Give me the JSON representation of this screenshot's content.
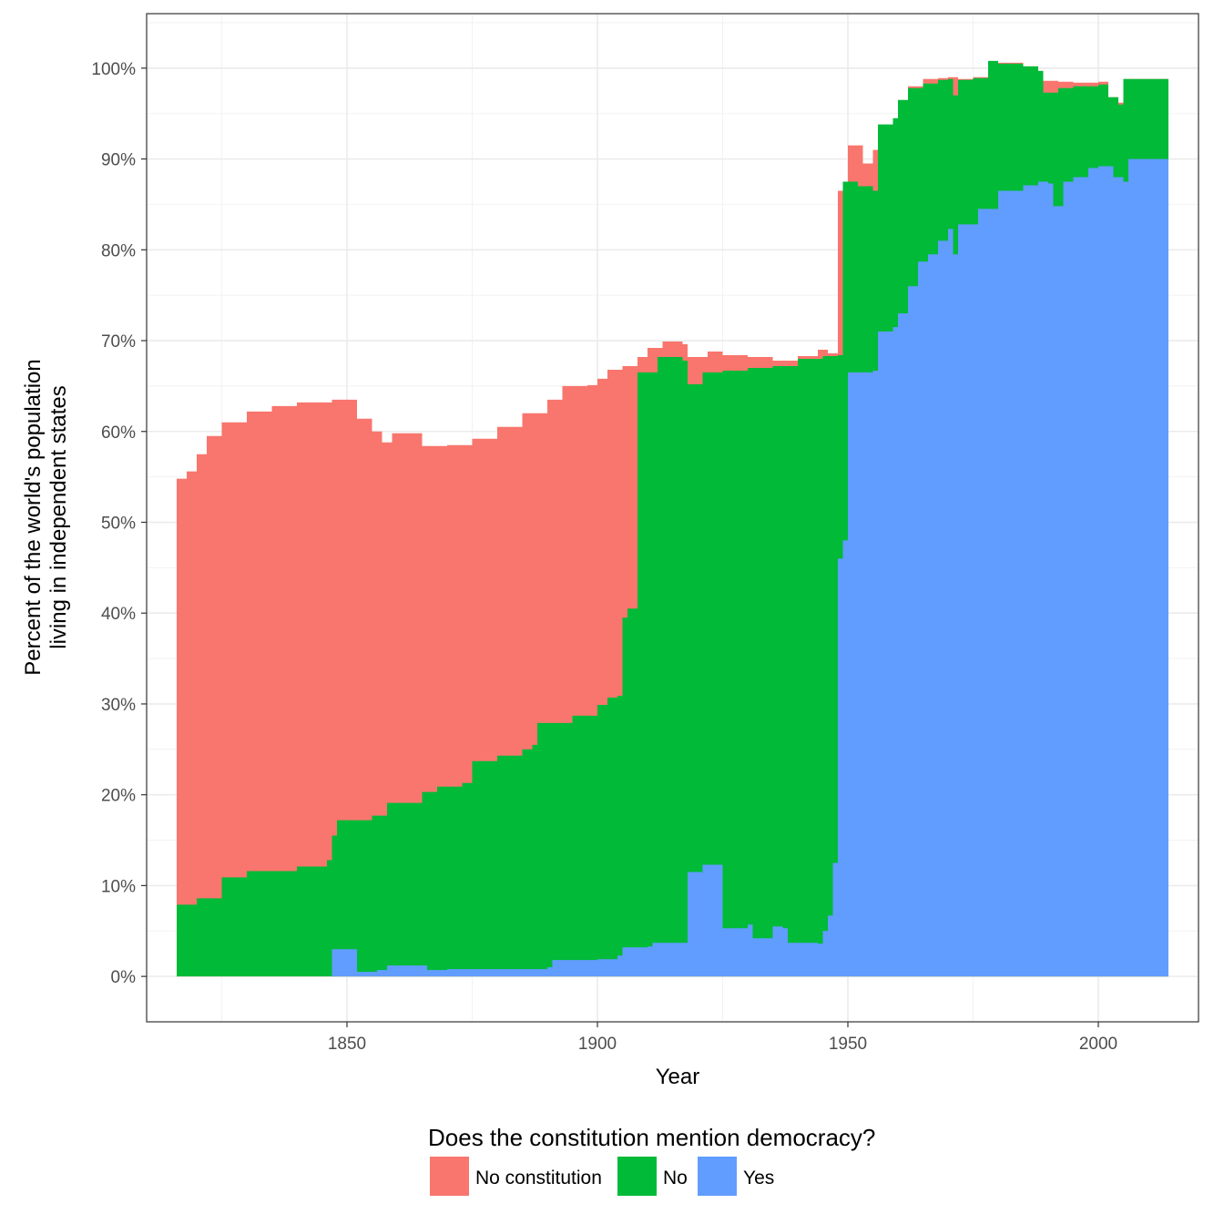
{
  "chart_data": {
    "type": "area",
    "stacked": true,
    "xlabel": "Year",
    "ylabel_lines": [
      "Percent of the world's population",
      "living in independent states"
    ],
    "xlim": [
      1810,
      2020
    ],
    "ylim": [
      -5,
      106
    ],
    "x_ticks": [
      1850,
      1900,
      1950,
      2000
    ],
    "x_tick_labels": [
      "1850",
      "1900",
      "1950",
      "2000"
    ],
    "y_ticks": [
      0,
      10,
      20,
      30,
      40,
      50,
      60,
      70,
      80,
      90,
      100
    ],
    "y_tick_labels": [
      "0%",
      "10%",
      "20%",
      "30%",
      "40%",
      "50%",
      "60%",
      "70%",
      "80%",
      "90%",
      "100%"
    ],
    "grid": true,
    "legend": {
      "position": "bottom",
      "title": "Does the constitution mention democracy?",
      "entries": [
        {
          "label": "No constitution",
          "color": "#F8766D"
        },
        {
          "label": "No",
          "color": "#00BA38"
        },
        {
          "label": "Yes",
          "color": "#619CFF"
        }
      ]
    },
    "series": [
      {
        "name": "Yes",
        "color": "#619CFF",
        "points": [
          [
            1816,
            0
          ],
          [
            1846,
            0
          ],
          [
            1847,
            3
          ],
          [
            1851,
            3
          ],
          [
            1852,
            0.5
          ],
          [
            1856,
            0.7
          ],
          [
            1858,
            1.2
          ],
          [
            1865,
            1.2
          ],
          [
            1866,
            0.7
          ],
          [
            1870,
            0.8
          ],
          [
            1880,
            0.8
          ],
          [
            1890,
            1.0
          ],
          [
            1891,
            1.8
          ],
          [
            1900,
            1.9
          ],
          [
            1904,
            2.3
          ],
          [
            1905,
            3.2
          ],
          [
            1910,
            3.3
          ],
          [
            1911,
            3.7
          ],
          [
            1917,
            3.7
          ],
          [
            1918,
            11.5
          ],
          [
            1921,
            12.3
          ],
          [
            1924,
            12.3
          ],
          [
            1925,
            5.3
          ],
          [
            1930,
            5.7
          ],
          [
            1931,
            4.2
          ],
          [
            1935,
            5.5
          ],
          [
            1937,
            5.3
          ],
          [
            1938,
            3.7
          ],
          [
            1944,
            3.6
          ],
          [
            1945,
            5
          ],
          [
            1946,
            6.7
          ],
          [
            1947,
            12.5
          ],
          [
            1948,
            46
          ],
          [
            1949,
            48
          ],
          [
            1950,
            66.5
          ],
          [
            1955,
            66.7
          ],
          [
            1956,
            71
          ],
          [
            1959,
            71.5
          ],
          [
            1960,
            73
          ],
          [
            1962,
            76
          ],
          [
            1964,
            78.7
          ],
          [
            1966,
            79.5
          ],
          [
            1968,
            81.0
          ],
          [
            1970,
            82.3
          ],
          [
            1971,
            79.5
          ],
          [
            1972,
            82.8
          ],
          [
            1976,
            84.5
          ],
          [
            1980,
            86.5
          ],
          [
            1985,
            87.1
          ],
          [
            1988,
            87.5
          ],
          [
            1990,
            87.3
          ],
          [
            1991,
            84.8
          ],
          [
            1993,
            87.5
          ],
          [
            1995,
            88
          ],
          [
            1998,
            89
          ],
          [
            2000,
            89.2
          ],
          [
            2003,
            88
          ],
          [
            2005,
            87.5
          ],
          [
            2006,
            90
          ],
          [
            2014,
            90.5
          ]
        ]
      },
      {
        "name": "No",
        "color": "#00BA38",
        "points": [
          [
            1816,
            7.9
          ],
          [
            1820,
            8.6
          ],
          [
            1825,
            10.9
          ],
          [
            1830,
            11.6
          ],
          [
            1840,
            12.1
          ],
          [
            1846,
            12.8
          ],
          [
            1847,
            15.5
          ],
          [
            1848,
            17.2
          ],
          [
            1855,
            17.7
          ],
          [
            1858,
            19.1
          ],
          [
            1865,
            20.3
          ],
          [
            1868,
            20.9
          ],
          [
            1873,
            21.3
          ],
          [
            1875,
            23.7
          ],
          [
            1880,
            24.3
          ],
          [
            1885,
            25.0
          ],
          [
            1887,
            25.5
          ],
          [
            1888,
            27.9
          ],
          [
            1895,
            28.7
          ],
          [
            1900,
            29.9
          ],
          [
            1902,
            30.7
          ],
          [
            1904,
            30.9
          ],
          [
            1905,
            39.5
          ],
          [
            1906,
            40.5
          ],
          [
            1908,
            66.5
          ],
          [
            1912,
            68.2
          ],
          [
            1917,
            67.8
          ],
          [
            1918,
            65.2
          ],
          [
            1921,
            66.5
          ],
          [
            1925,
            66.7
          ],
          [
            1930,
            67.0
          ],
          [
            1935,
            67.2
          ],
          [
            1940,
            68.0
          ],
          [
            1945,
            68.3
          ],
          [
            1946,
            68.3
          ],
          [
            1947,
            68.3
          ],
          [
            1948,
            68.4
          ],
          [
            1949,
            87.5
          ],
          [
            1952,
            87.0
          ],
          [
            1955,
            86.5
          ],
          [
            1956,
            93.8
          ],
          [
            1959,
            94.5
          ],
          [
            1960,
            96.5
          ],
          [
            1962,
            97.8
          ],
          [
            1965,
            98.3
          ],
          [
            1968,
            98.7
          ],
          [
            1970,
            98.8
          ],
          [
            1971,
            97
          ],
          [
            1972,
            98.7
          ],
          [
            1975,
            98.9
          ],
          [
            1978,
            100.8
          ],
          [
            1980,
            100.5
          ],
          [
            1985,
            100.2
          ],
          [
            1988,
            99.7
          ],
          [
            1989,
            97.3
          ],
          [
            1992,
            97.8
          ],
          [
            1995,
            98.0
          ],
          [
            2000,
            98.2
          ],
          [
            2002,
            96.8
          ],
          [
            2004,
            96
          ],
          [
            2005,
            98.8
          ],
          [
            2014,
            98.9
          ]
        ]
      },
      {
        "name": "No constitution",
        "color": "#F8766D",
        "points": [
          [
            1816,
            54.8
          ],
          [
            1818,
            55.6
          ],
          [
            1820,
            57.5
          ],
          [
            1822,
            59.5
          ],
          [
            1825,
            61.0
          ],
          [
            1830,
            62.2
          ],
          [
            1835,
            62.8
          ],
          [
            1840,
            63.2
          ],
          [
            1847,
            63.5
          ],
          [
            1850,
            63.5
          ],
          [
            1852,
            61.4
          ],
          [
            1855,
            60.0
          ],
          [
            1857,
            58.8
          ],
          [
            1859,
            59.8
          ],
          [
            1865,
            58.4
          ],
          [
            1870,
            58.5
          ],
          [
            1875,
            59.2
          ],
          [
            1880,
            60.5
          ],
          [
            1885,
            62.0
          ],
          [
            1890,
            63.5
          ],
          [
            1893,
            65.0
          ],
          [
            1898,
            65.1
          ],
          [
            1900,
            65.8
          ],
          [
            1902,
            66.8
          ],
          [
            1905,
            67.2
          ],
          [
            1908,
            68.2
          ],
          [
            1910,
            69.2
          ],
          [
            1913,
            69.9
          ],
          [
            1917,
            69.6
          ],
          [
            1918,
            68.2
          ],
          [
            1922,
            68.8
          ],
          [
            1925,
            68.4
          ],
          [
            1930,
            68.2
          ],
          [
            1935,
            67.8
          ],
          [
            1940,
            68.3
          ],
          [
            1944,
            69.0
          ],
          [
            1945,
            69.0
          ],
          [
            1946,
            68.6
          ],
          [
            1947,
            68.6
          ],
          [
            1948,
            86.5
          ],
          [
            1950,
            91.5
          ],
          [
            1953,
            89.5
          ],
          [
            1955,
            91.0
          ],
          [
            1958,
            92.8
          ],
          [
            1960,
            95.2
          ],
          [
            1962,
            98.0
          ],
          [
            1965,
            98.8
          ],
          [
            1968,
            98.9
          ],
          [
            1970,
            99.0
          ],
          [
            1972,
            98.8
          ],
          [
            1975,
            99.0
          ],
          [
            1980,
            100.6
          ],
          [
            1985,
            100.2
          ],
          [
            1988,
            99.7
          ],
          [
            1989,
            98.6
          ],
          [
            1992,
            98.5
          ],
          [
            1995,
            98.4
          ],
          [
            2000,
            98.5
          ],
          [
            2002,
            96.8
          ],
          [
            2004,
            96.2
          ],
          [
            2005,
            98.8
          ],
          [
            2014,
            99.0
          ]
        ]
      }
    ]
  }
}
